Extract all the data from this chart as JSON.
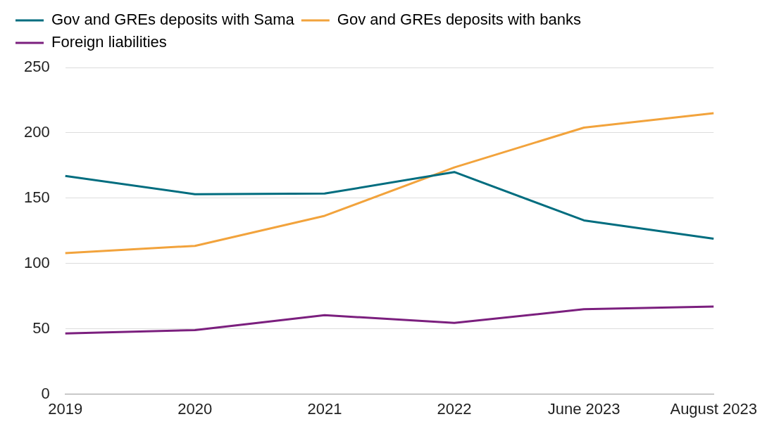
{
  "chart_data": {
    "type": "line",
    "categories": [
      "2019",
      "2020",
      "2021",
      "2022",
      "June 2023",
      "August 2023"
    ],
    "series": [
      {
        "name": "Gov and GREs deposits with Sama",
        "color": "#006d7f",
        "values": [
          167,
          153,
          153.5,
          170,
          133,
          119
        ]
      },
      {
        "name": "Gov and GREs deposits with banks",
        "color": "#f2a33c",
        "values": [
          108,
          113.5,
          136.5,
          173.5,
          204,
          215
        ]
      },
      {
        "name": "Foreign liabilities",
        "color": "#7b1f7e",
        "values": [
          46.5,
          49,
          60.5,
          54.5,
          65,
          67
        ]
      }
    ],
    "ylim": [
      0,
      250
    ],
    "yticks": [
      0,
      50,
      100,
      150,
      200,
      250
    ],
    "grid": "y",
    "legend": "top left",
    "marker": "none",
    "line_style": "solid"
  }
}
